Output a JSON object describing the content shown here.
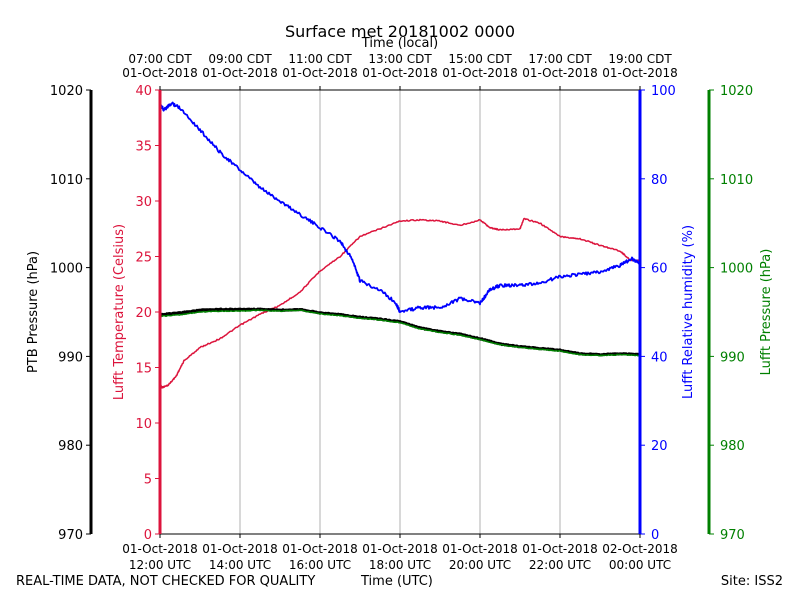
{
  "chart_data": {
    "type": "line",
    "title": "Surface met 20181002 0000",
    "top_axis_label": "Time (local)",
    "xlabel": "Time (UTC)",
    "x_hours_utc_range": [
      12,
      24
    ],
    "top_ticks": [
      {
        "h": 12,
        "l1": "07:00 CDT",
        "l2": "01-Oct-2018"
      },
      {
        "h": 14,
        "l1": "09:00 CDT",
        "l2": "01-Oct-2018"
      },
      {
        "h": 16,
        "l1": "11:00 CDT",
        "l2": "01-Oct-2018"
      },
      {
        "h": 18,
        "l1": "13:00 CDT",
        "l2": "01-Oct-2018"
      },
      {
        "h": 20,
        "l1": "15:00 CDT",
        "l2": "01-Oct-2018"
      },
      {
        "h": 22,
        "l1": "17:00 CDT",
        "l2": "01-Oct-2018"
      },
      {
        "h": 24,
        "l1": "19:00 CDT",
        "l2": "01-Oct-2018"
      }
    ],
    "bottom_ticks": [
      {
        "h": 12,
        "l1": "01-Oct-2018",
        "l2": "12:00 UTC"
      },
      {
        "h": 14,
        "l1": "01-Oct-2018",
        "l2": "14:00 UTC"
      },
      {
        "h": 16,
        "l1": "01-Oct-2018",
        "l2": "16:00 UTC"
      },
      {
        "h": 18,
        "l1": "01-Oct-2018",
        "l2": "18:00 UTC"
      },
      {
        "h": 20,
        "l1": "01-Oct-2018",
        "l2": "20:00 UTC"
      },
      {
        "h": 22,
        "l1": "01-Oct-2018",
        "l2": "22:00 UTC"
      },
      {
        "h": 24,
        "l1": "02-Oct-2018",
        "l2": "00:00 UTC"
      }
    ],
    "axes": {
      "ptb_pressure": {
        "label": "PTB Pressure (hPa)",
        "ylim": [
          970,
          1020
        ],
        "ticks": [
          970,
          980,
          990,
          1000,
          1010,
          1020
        ],
        "color": "#000000"
      },
      "temperature": {
        "label": "Lufft Temperature (Celsius)",
        "ylim": [
          0,
          40
        ],
        "ticks": [
          0,
          5,
          10,
          15,
          20,
          25,
          30,
          35,
          40
        ],
        "color": "#dc143c"
      },
      "humidity": {
        "label": "Lufft Relative humidity (%)",
        "ylim": [
          0,
          100
        ],
        "ticks": [
          0,
          20,
          40,
          60,
          80,
          100
        ],
        "color": "#0000ff"
      },
      "lufft_pressure": {
        "label": "Lufft Pressure (hPa)",
        "ylim": [
          970,
          1020
        ],
        "ticks": [
          970,
          980,
          990,
          1000,
          1010,
          1020
        ],
        "color": "#008000"
      }
    },
    "series": [
      {
        "name": "Lufft Temperature",
        "axis": "temperature",
        "color": "#dc143c",
        "x": [
          12.0,
          12.05,
          12.2,
          12.4,
          12.6,
          13.0,
          13.5,
          14.0,
          14.5,
          15.0,
          15.5,
          16.0,
          16.5,
          17.0,
          17.5,
          18.0,
          18.5,
          19.0,
          19.5,
          20.0,
          20.25,
          20.5,
          21.0,
          21.1,
          21.5,
          22.0,
          22.5,
          23.0,
          23.5,
          23.75,
          24.0
        ],
        "y": [
          13.5,
          13.2,
          13.4,
          14.2,
          15.6,
          16.8,
          17.6,
          18.8,
          19.8,
          20.6,
          21.8,
          23.7,
          25.0,
          26.8,
          27.5,
          28.2,
          28.3,
          28.2,
          27.8,
          28.3,
          27.6,
          27.4,
          27.5,
          28.4,
          28.0,
          26.8,
          26.6,
          26.0,
          25.5,
          24.7,
          24.6
        ]
      },
      {
        "name": "Lufft Relative humidity",
        "axis": "humidity",
        "color": "#0000ff",
        "x": [
          12.0,
          12.1,
          12.3,
          12.5,
          13.0,
          13.5,
          14.0,
          14.5,
          15.0,
          15.5,
          16.0,
          16.5,
          16.8,
          17.0,
          17.5,
          17.9,
          18.0,
          18.5,
          19.0,
          19.5,
          20.0,
          20.25,
          20.5,
          21.0,
          21.5,
          22.0,
          22.5,
          23.0,
          23.5,
          23.8,
          24.0
        ],
        "y": [
          97,
          95.5,
          97,
          96,
          91,
          86,
          82,
          78,
          75,
          72,
          69,
          66,
          62,
          57,
          55,
          52,
          50,
          51,
          51,
          53,
          52,
          55,
          56,
          56,
          56.5,
          58,
          58.5,
          59,
          60.5,
          62,
          61
        ]
      },
      {
        "name": "PTB Pressure",
        "axis": "ptb_pressure",
        "color": "#000000",
        "x": [
          12.0,
          12.5,
          13.0,
          13.5,
          14.0,
          14.5,
          15.0,
          15.5,
          16.0,
          16.5,
          17.0,
          17.5,
          18.0,
          18.5,
          19.0,
          19.5,
          20.0,
          20.5,
          21.0,
          21.5,
          22.0,
          22.5,
          23.0,
          23.5,
          24.0
        ],
        "y": [
          994.7,
          994.9,
          995.2,
          995.3,
          995.3,
          995.3,
          995.2,
          995.3,
          994.9,
          994.7,
          994.4,
          994.2,
          993.9,
          993.2,
          992.8,
          992.5,
          992.0,
          991.4,
          991.1,
          990.9,
          990.7,
          990.3,
          990.2,
          990.3,
          990.2
        ]
      },
      {
        "name": "Lufft Pressure",
        "axis": "lufft_pressure",
        "color": "#008000",
        "x": [
          12.0,
          12.5,
          13.0,
          13.5,
          14.0,
          14.5,
          15.0,
          15.5,
          16.0,
          16.5,
          17.0,
          17.5,
          18.0,
          18.5,
          19.0,
          19.5,
          20.0,
          20.5,
          21.0,
          21.5,
          22.0,
          22.5,
          23.0,
          23.5,
          24.0
        ],
        "y": [
          994.5,
          994.7,
          995.0,
          995.1,
          995.1,
          995.2,
          995.1,
          995.2,
          994.8,
          994.6,
          994.3,
          994.1,
          993.8,
          993.1,
          992.7,
          992.4,
          991.9,
          991.3,
          991.0,
          990.8,
          990.6,
          990.2,
          990.1,
          990.2,
          990.1
        ]
      }
    ]
  },
  "footer": {
    "left": "REAL-TIME DATA, NOT CHECKED FOR QUALITY",
    "center": "Time (UTC)",
    "right": "Site: ISS2"
  }
}
